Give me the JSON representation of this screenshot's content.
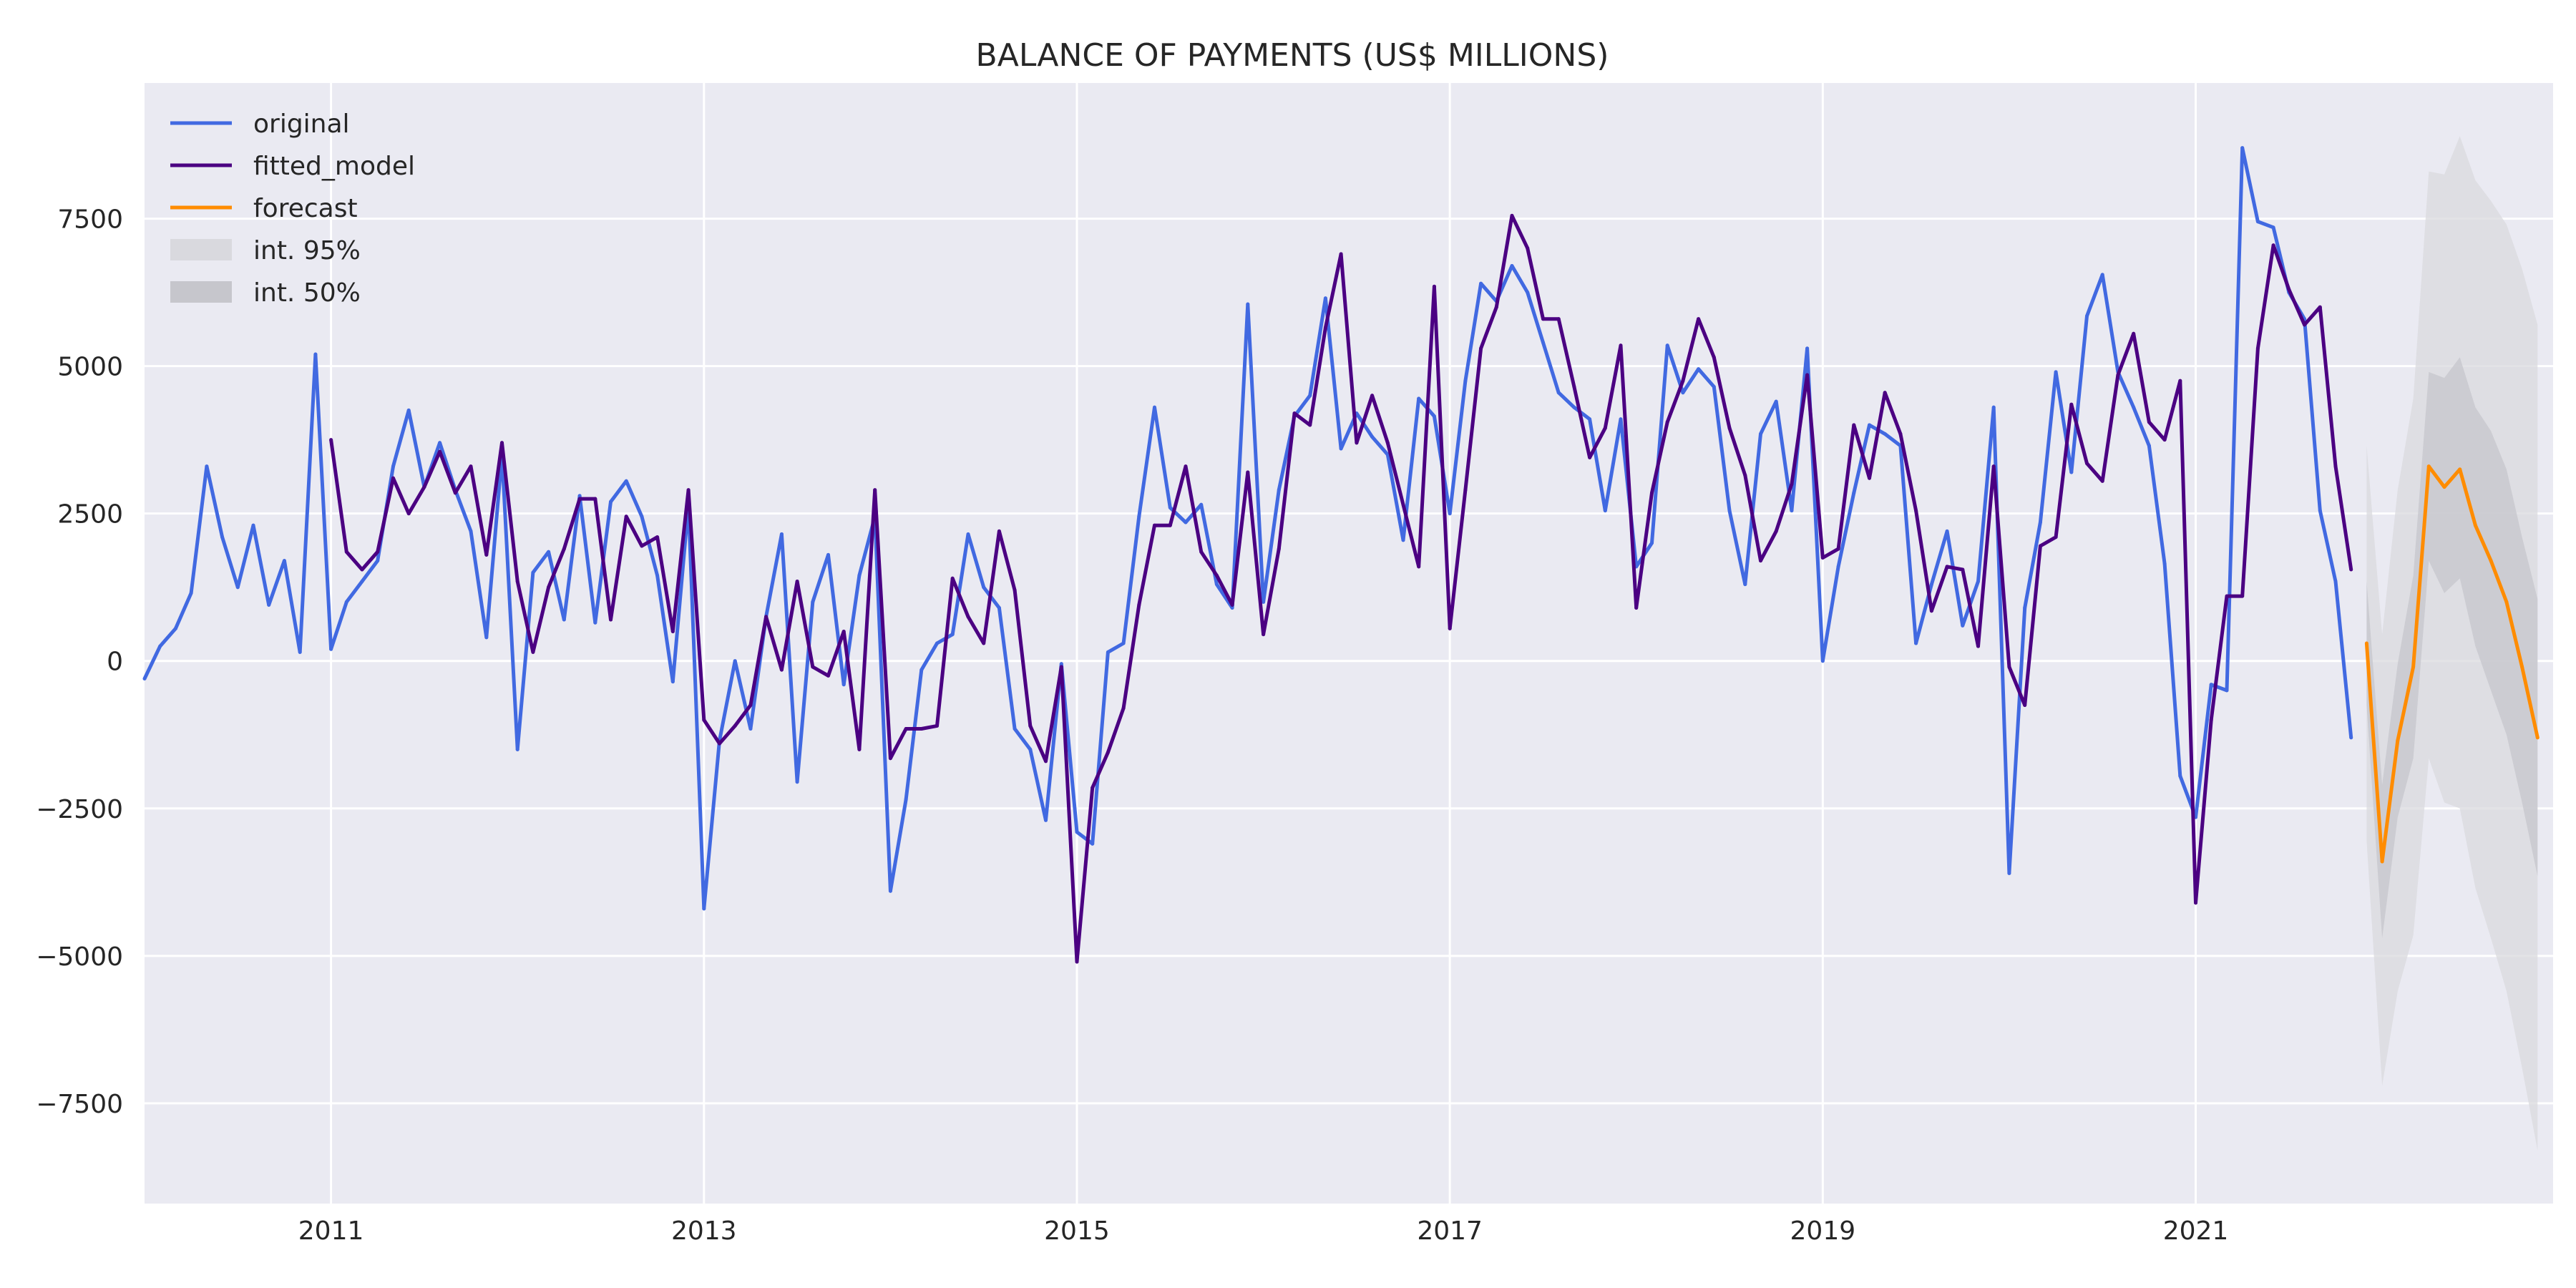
{
  "chart_data": {
    "type": "line",
    "title": "BALANCE OF PAYMENTS (US$ MILLIONS)",
    "xlabel": "",
    "ylabel": "",
    "xlim": [
      "2010-01",
      "2022-12"
    ],
    "ylim": [
      -9200,
      9800
    ],
    "x_ticks": [
      {
        "label": "2011",
        "date": "2011-01"
      },
      {
        "label": "2013",
        "date": "2013-01"
      },
      {
        "label": "2015",
        "date": "2015-01"
      },
      {
        "label": "2017",
        "date": "2017-01"
      },
      {
        "label": "2019",
        "date": "2019-01"
      },
      {
        "label": "2021",
        "date": "2021-01"
      }
    ],
    "y_ticks": [
      {
        "label": "7500",
        "value": 7500
      },
      {
        "label": "5000",
        "value": 5000
      },
      {
        "label": "2500",
        "value": 2500
      },
      {
        "label": "0",
        "value": 0
      },
      {
        "label": "−2500",
        "value": -2500
      },
      {
        "label": "−5000",
        "value": -5000
      },
      {
        "label": "−7500",
        "value": -7500
      }
    ],
    "grid": true,
    "legend_position": "top-left",
    "background_color": "#eaeaf2",
    "legend": [
      {
        "label": "original",
        "kind": "line",
        "color": "#4169e1"
      },
      {
        "label": "fitted_model",
        "kind": "line",
        "color": "#4b0082"
      },
      {
        "label": "forecast",
        "kind": "line",
        "color": "#ff8c00"
      },
      {
        "label": "int. 95%",
        "kind": "band",
        "color": "#d9d9de"
      },
      {
        "label": "int. 50%",
        "kind": "band",
        "color": "#c6c6cc"
      }
    ],
    "series": [
      {
        "name": "original",
        "color": "#4169e1",
        "start": "2010-01",
        "values": [
          -300,
          250,
          550,
          1150,
          3300,
          2100,
          1250,
          2300,
          950,
          1700,
          150,
          5200,
          200,
          1000,
          1350,
          1700,
          3300,
          4250,
          2950,
          3700,
          2900,
          2200,
          400,
          3500,
          -1500,
          1500,
          1850,
          700,
          2800,
          650,
          2700,
          3050,
          2450,
          1450,
          -350,
          2650,
          -4200,
          -1350,
          0,
          -1150,
          750,
          2150,
          -2050,
          1000,
          1800,
          -400,
          1450,
          2450,
          -3900,
          -2350,
          -150,
          300,
          450,
          2150,
          1250,
          900,
          -1150,
          -1500,
          -2700,
          -50,
          -2900,
          -3100,
          150,
          300,
          2450,
          4300,
          2600,
          2350,
          2650,
          1300,
          900,
          6050,
          1000,
          2900,
          4150,
          4500,
          6150,
          3600,
          4200,
          3800,
          3500,
          2050,
          4450,
          4150,
          2500,
          4750,
          6400,
          6100,
          6700,
          6250,
          5400,
          4550,
          4300,
          4100,
          2550,
          4100,
          1600,
          2000,
          5350,
          4550,
          4950,
          4650,
          2550,
          1300,
          3850,
          4400,
          2550,
          5300,
          0,
          1600,
          2850,
          4000,
          3850,
          3650,
          300,
          1300,
          2200,
          600,
          1350,
          4300,
          -3600,
          900,
          2350,
          4900,
          3200,
          5850,
          6550,
          4900,
          4300,
          3650,
          1650,
          -1950,
          -2650,
          -400,
          -500,
          8700,
          7450,
          7350,
          6250,
          5800,
          2550,
          1350,
          -1300
        ]
      },
      {
        "name": "fitted_model",
        "color": "#4b0082",
        "start": "2011-01",
        "values": [
          3750,
          1850,
          1550,
          1850,
          3100,
          2500,
          2950,
          3550,
          2850,
          3300,
          1800,
          3700,
          1350,
          150,
          1250,
          1900,
          2750,
          2750,
          700,
          2450,
          1950,
          2100,
          500,
          2900,
          -1000,
          -1400,
          -1100,
          -750,
          750,
          -150,
          1350,
          -100,
          -250,
          500,
          -1500,
          2900,
          -1650,
          -1150,
          -1150,
          -1100,
          1400,
          750,
          300,
          2200,
          1200,
          -1100,
          -1700,
          -100,
          -5100,
          -2150,
          -1550,
          -800,
          950,
          2300,
          2300,
          3300,
          1850,
          1450,
          950,
          3200,
          450,
          1900,
          4200,
          4000,
          5650,
          6900,
          3700,
          4500,
          3700,
          2650,
          1600,
          6350,
          550,
          2900,
          5300,
          6000,
          7550,
          7000,
          5800,
          5800,
          4650,
          3450,
          3950,
          5350,
          900,
          2850,
          4050,
          4750,
          5800,
          5150,
          3950,
          3150,
          1700,
          2200,
          3000,
          4850,
          1750,
          1900,
          4000,
          3100,
          4550,
          3850,
          2550,
          850,
          1600,
          1550,
          250,
          3300,
          -100,
          -750,
          1950,
          2100,
          4350,
          3350,
          3050,
          4850,
          5550,
          4050,
          3750,
          4750,
          -4100,
          -1000,
          1100,
          1100,
          5300,
          7050,
          6300,
          5700,
          6000,
          3300,
          1550
        ]
      },
      {
        "name": "forecast",
        "color": "#ff8c00",
        "start": "2021-12",
        "values": [
          300,
          -3400,
          -1350,
          -100,
          3300,
          2950,
          3250,
          2300,
          1700,
          1000,
          -100,
          -1300
        ]
      }
    ],
    "intervals": [
      {
        "name": "int. 95%",
        "color": "#d9d9de",
        "start": "2021-12",
        "lower": [
          -3050,
          -7200,
          -5600,
          -4650,
          -1650,
          -2400,
          -2500,
          -3850,
          -4700,
          -5600,
          -6900,
          -8300
        ],
        "upper": [
          3650,
          450,
          2900,
          4450,
          8300,
          8250,
          8900,
          8150,
          7800,
          7400,
          6650,
          5700
        ]
      },
      {
        "name": "int. 50%",
        "color": "#c6c6cc",
        "start": "2021-12",
        "lower": [
          -750,
          -4700,
          -2650,
          -1650,
          1700,
          1150,
          1400,
          250,
          -500,
          -1250,
          -2400,
          -3650
        ],
        "upper": [
          1350,
          -2100,
          -50,
          1450,
          4900,
          4800,
          5150,
          4300,
          3900,
          3250,
          2100,
          1050
        ]
      }
    ]
  }
}
